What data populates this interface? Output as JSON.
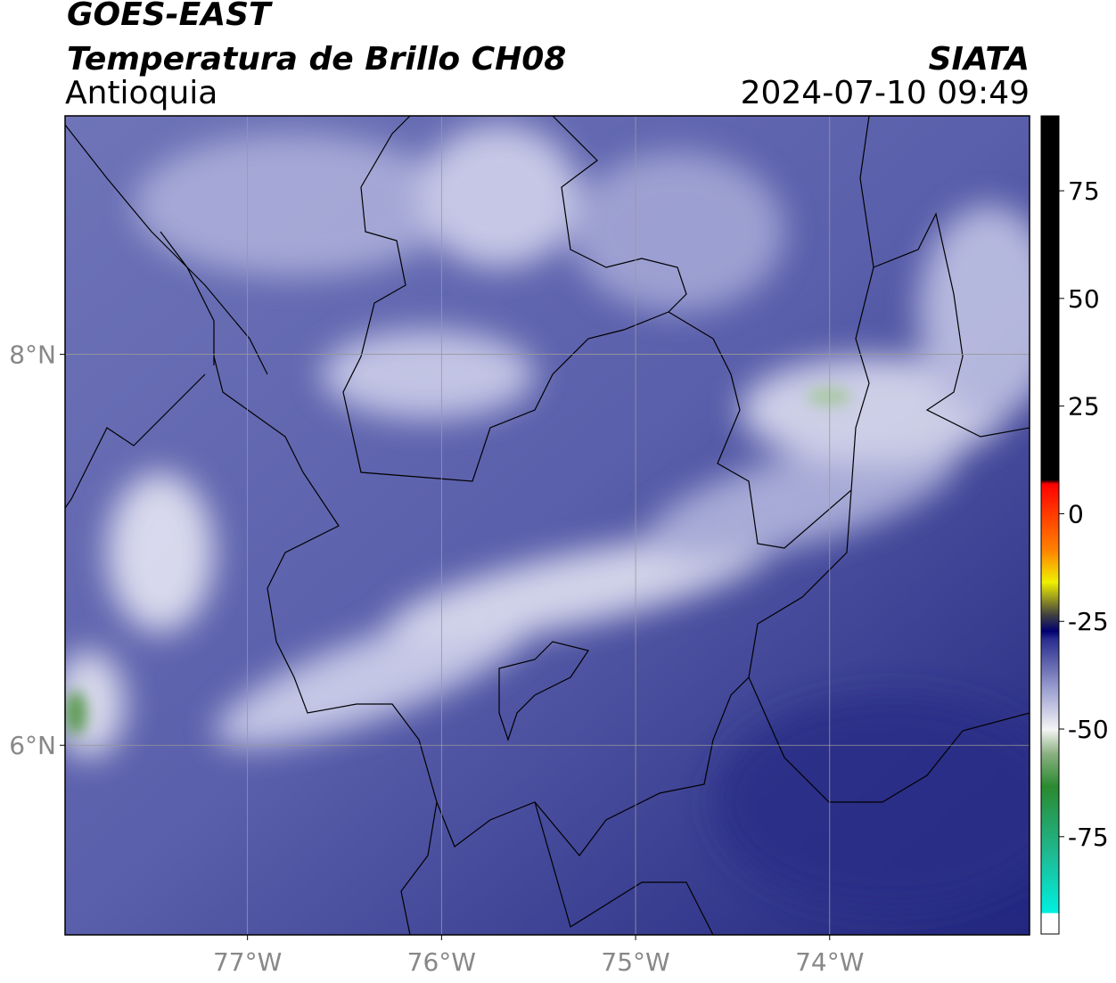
{
  "header": {
    "title": "GOES-EAST",
    "subtitle": "Temperatura de Brillo CH08",
    "region": "Antioquia",
    "source": "SIATA",
    "datetime": "2024-07-10 09:49"
  },
  "map": {
    "lon_range": [
      -77.94,
      -72.97
    ],
    "lat_range": [
      5.03,
      9.22
    ],
    "lat_ticks": [
      {
        "value": 8,
        "label": "8°N"
      },
      {
        "value": 6,
        "label": "6°N"
      }
    ],
    "lon_ticks": [
      {
        "value": -77,
        "label": "77°W"
      },
      {
        "value": -76,
        "label": "76°W"
      },
      {
        "value": -75,
        "label": "75°W"
      },
      {
        "value": -74,
        "label": "74°W"
      }
    ]
  },
  "colorbar": {
    "range": [
      -97.6,
      92.4
    ],
    "ticks": [
      75,
      50,
      25,
      0,
      -25,
      -50,
      -75
    ]
  }
}
